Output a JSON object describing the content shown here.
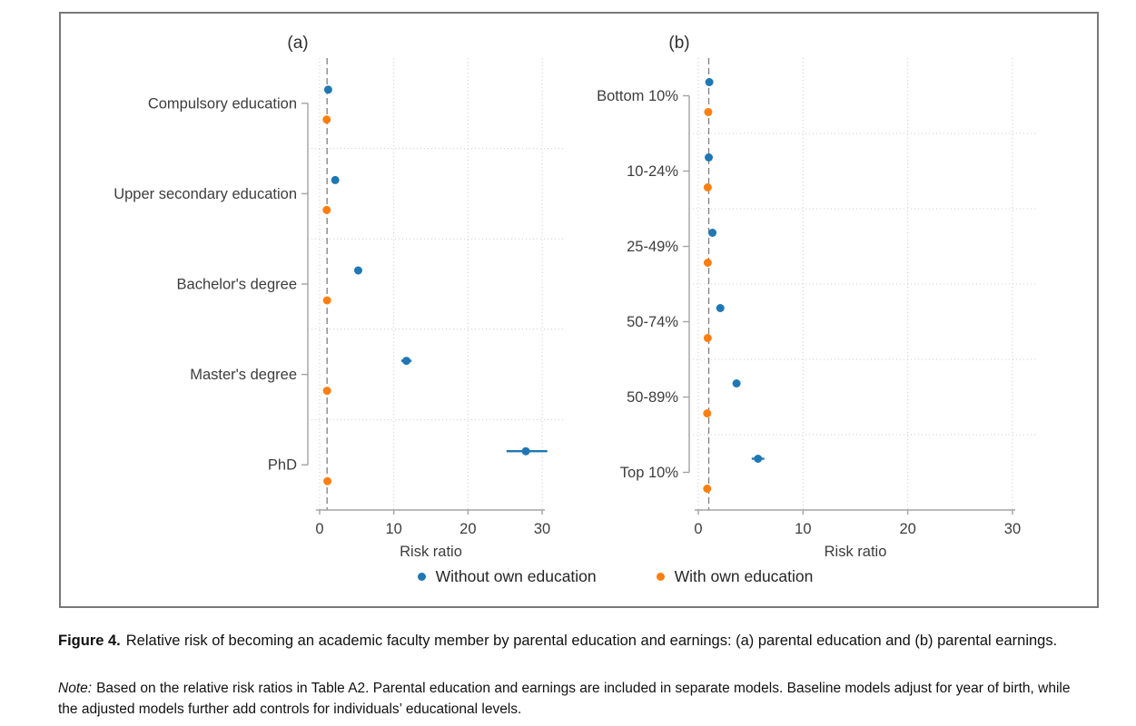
{
  "figure": {
    "caption_label": "Figure 4.",
    "caption_text": "Relative risk of becoming an academic faculty member by parental education and earnings: (a) parental education and (b) parental earnings.",
    "note_label": "Note:",
    "note_text": "Based on the relative risk ratios in Table A2. Parental education and earnings are included in separate models. Baseline models adjust for year of birth, while the adjusted models further add controls for individuals’ educational levels."
  },
  "legend": {
    "items": [
      {
        "label": "Without own education",
        "color": "#1f77b4"
      },
      {
        "label": "With own education",
        "color": "#ff7f0e"
      }
    ]
  },
  "colors": {
    "blue": "#1f77b4",
    "orange": "#ff7f0e",
    "grid": "#cccccc",
    "reference_line": "#7e7e7e",
    "axis": "#a3a3a3",
    "text": "#3d3d3d"
  },
  "chart_data": [
    {
      "type": "scatter",
      "panel_label": "(a)",
      "panel_subject": "parental education",
      "categories": [
        "Compulsory education",
        "Upper secondary education",
        "Bachelor's degree",
        "Master's degree",
        "PhD"
      ],
      "series": [
        {
          "name": "Without own education",
          "color": "#1f77b4",
          "values": [
            1.15,
            2.1,
            5.2,
            11.7,
            27.8
          ],
          "ci_low": [
            0.95,
            1.9,
            4.9,
            11.0,
            25.2
          ],
          "ci_high": [
            1.35,
            2.3,
            5.5,
            12.4,
            30.7
          ]
        },
        {
          "name": "With own education",
          "color": "#ff7f0e",
          "values": [
            0.95,
            0.95,
            1.0,
            1.0,
            1.05
          ],
          "ci_low": [
            0.85,
            0.85,
            0.9,
            0.9,
            0.9
          ],
          "ci_high": [
            1.05,
            1.05,
            1.1,
            1.1,
            1.2
          ]
        }
      ],
      "xlabel": "Risk ratio",
      "x_ticks": [
        0,
        10,
        20,
        30
      ],
      "xlim": [
        0,
        31
      ],
      "reference_line_x": 1,
      "grid": true,
      "legend_position": "bottom"
    },
    {
      "type": "scatter",
      "panel_label": "(b)",
      "panel_subject": "parental earnings",
      "categories": [
        "Bottom 10%",
        "10-24%",
        "25-49%",
        "50-74%",
        "50-89%",
        "Top 10%"
      ],
      "series": [
        {
          "name": "Without own education",
          "color": "#1f77b4",
          "values": [
            1.05,
            1.0,
            1.35,
            2.1,
            3.65,
            5.7
          ],
          "ci_low": [
            0.9,
            0.85,
            1.2,
            1.9,
            3.4,
            5.1
          ],
          "ci_high": [
            1.2,
            1.15,
            1.5,
            2.3,
            3.9,
            6.3
          ]
        },
        {
          "name": "With own education",
          "color": "#ff7f0e",
          "values": [
            0.95,
            0.9,
            0.9,
            0.9,
            0.85,
            0.85
          ],
          "ci_low": [
            0.85,
            0.8,
            0.8,
            0.8,
            0.75,
            0.75
          ],
          "ci_high": [
            1.05,
            1.0,
            1.0,
            1.0,
            0.95,
            0.95
          ]
        }
      ],
      "xlabel": "Risk ratio",
      "x_ticks": [
        0,
        10,
        20,
        30
      ],
      "xlim": [
        0,
        31
      ],
      "reference_line_x": 1,
      "grid": true,
      "legend_position": "bottom"
    }
  ]
}
